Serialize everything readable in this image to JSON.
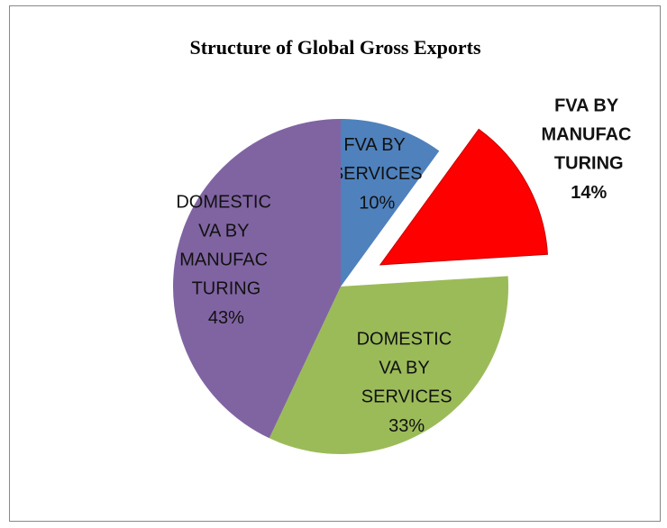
{
  "chart_data": {
    "type": "pie",
    "title": "Structure of Global Gross Exports",
    "categories": [
      "FVA BY SERVICES",
      "FVA BY MANUFAC TURING",
      "DOMESTIC VA BY SERVICES",
      "DOMESTIC VA BY MANUFAC TURING"
    ],
    "values": [
      10,
      14,
      33,
      43
    ],
    "value_labels": [
      "10%",
      "14%",
      "33%",
      "43%"
    ],
    "colors": [
      "#4f81bd",
      "#ff0000",
      "#9bbb59",
      "#8064a2"
    ],
    "explode": [
      false,
      true,
      false,
      false
    ]
  }
}
